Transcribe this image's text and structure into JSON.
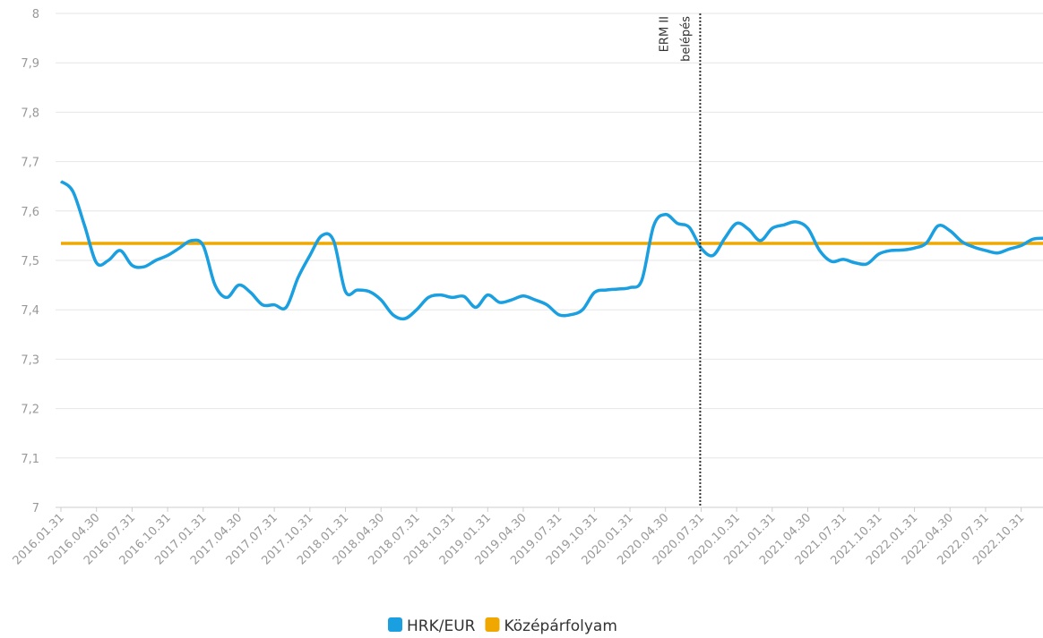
{
  "chart_data": {
    "type": "line",
    "categories": [
      "2016.01.31",
      null,
      null,
      "2016.04.30",
      null,
      null,
      "2016.07.31",
      null,
      null,
      "2016.10.31",
      null,
      null,
      "2017.01.31",
      null,
      null,
      "2017.04.30",
      null,
      null,
      "2017.07.31",
      null,
      null,
      "2017.10.31",
      null,
      null,
      "2018.01.31",
      null,
      null,
      "2018.04.30",
      null,
      null,
      "2018.07.31",
      null,
      null,
      "2018.10.31",
      null,
      null,
      "2019.01.31",
      null,
      null,
      "2019.04.30",
      null,
      null,
      "2019.07.31",
      null,
      null,
      "2019.10.31",
      null,
      null,
      "2020.01.31",
      null,
      null,
      "2020.04.30",
      null,
      null,
      "2020.07.31",
      null,
      null,
      "2020.10.31",
      null,
      null,
      "2021.01.31",
      null,
      null,
      "2021.04.30",
      null,
      null,
      "2021.07.31",
      null,
      null,
      "2021.10.31",
      null,
      null,
      "2022.01.31",
      null,
      null,
      "2022.04.30",
      null,
      null,
      "2022.07.31",
      null,
      null,
      "2022.10.31",
      null,
      null
    ],
    "series": [
      {
        "name": "HRK/EUR",
        "color": "#1a9fe0",
        "values": [
          7.66,
          7.64,
          7.57,
          7.495,
          7.5,
          7.52,
          7.49,
          7.487,
          7.5,
          7.51,
          7.525,
          7.54,
          7.53,
          7.45,
          7.425,
          7.45,
          7.435,
          7.41,
          7.41,
          7.405,
          7.465,
          7.51,
          7.55,
          7.54,
          7.437,
          7.44,
          7.437,
          7.42,
          7.39,
          7.382,
          7.4,
          7.425,
          7.43,
          7.425,
          7.427,
          7.405,
          7.43,
          7.415,
          7.42,
          7.428,
          7.42,
          7.41,
          7.39,
          7.39,
          7.4,
          7.435,
          7.44,
          7.442,
          7.445,
          7.46,
          7.57,
          7.593,
          7.575,
          7.567,
          7.525,
          7.51,
          7.545,
          7.575,
          7.563,
          7.54,
          7.565,
          7.572,
          7.578,
          7.565,
          7.52,
          7.498,
          7.502,
          7.495,
          7.493,
          7.513,
          7.52,
          7.521,
          7.525,
          7.535,
          7.57,
          7.56,
          7.538,
          7.527,
          7.52,
          7.515,
          7.523,
          7.53,
          7.543,
          7.545
        ]
      },
      {
        "name": "Középárfolyam",
        "color": "#f0a800",
        "values": [
          7.5345,
          7.5345,
          7.5345,
          7.5345,
          7.5345,
          7.5345,
          7.5345,
          7.5345,
          7.5345,
          7.5345,
          7.5345,
          7.5345,
          7.5345,
          7.5345,
          7.5345,
          7.5345,
          7.5345,
          7.5345,
          7.5345,
          7.5345,
          7.5345,
          7.5345,
          7.5345,
          7.5345,
          7.5345,
          7.5345,
          7.5345,
          7.5345,
          7.5345,
          7.5345,
          7.5345,
          7.5345,
          7.5345,
          7.5345,
          7.5345,
          7.5345,
          7.5345,
          7.5345,
          7.5345,
          7.5345,
          7.5345,
          7.5345,
          7.5345,
          7.5345,
          7.5345,
          7.5345,
          7.5345,
          7.5345,
          7.5345,
          7.5345,
          7.5345,
          7.5345,
          7.5345,
          7.5345,
          7.5345,
          7.5345,
          7.5345,
          7.5345,
          7.5345,
          7.5345,
          7.5345,
          7.5345,
          7.5345,
          7.5345,
          7.5345,
          7.5345,
          7.5345,
          7.5345,
          7.5345,
          7.5345,
          7.5345,
          7.5345,
          7.5345,
          7.5345,
          7.5345,
          7.5345,
          7.5345,
          7.5345,
          7.5345,
          7.5345,
          7.5345,
          7.5345,
          7.5345,
          7.5345
        ]
      }
    ],
    "ylim": [
      7,
      8
    ],
    "yticks": [
      7,
      {
        "value": 7.1,
        "label": "7,1"
      },
      {
        "value": 7.2,
        "label": "7,2"
      },
      {
        "value": 7.3,
        "label": "7,3"
      },
      {
        "value": 7.4,
        "label": "7,4"
      },
      {
        "value": 7.5,
        "label": "7,5"
      },
      {
        "value": 7.6,
        "label": "7,6"
      },
      {
        "value": 7.7,
        "label": "7,7"
      },
      {
        "value": 7.8,
        "label": "7,8"
      },
      {
        "value": 7.9,
        "label": "7,9"
      },
      8
    ],
    "grid": true,
    "legend": "bottom",
    "annotations": [
      {
        "x": "2020.07.31",
        "text": [
          "ERM II",
          "belépés"
        ]
      }
    ]
  }
}
